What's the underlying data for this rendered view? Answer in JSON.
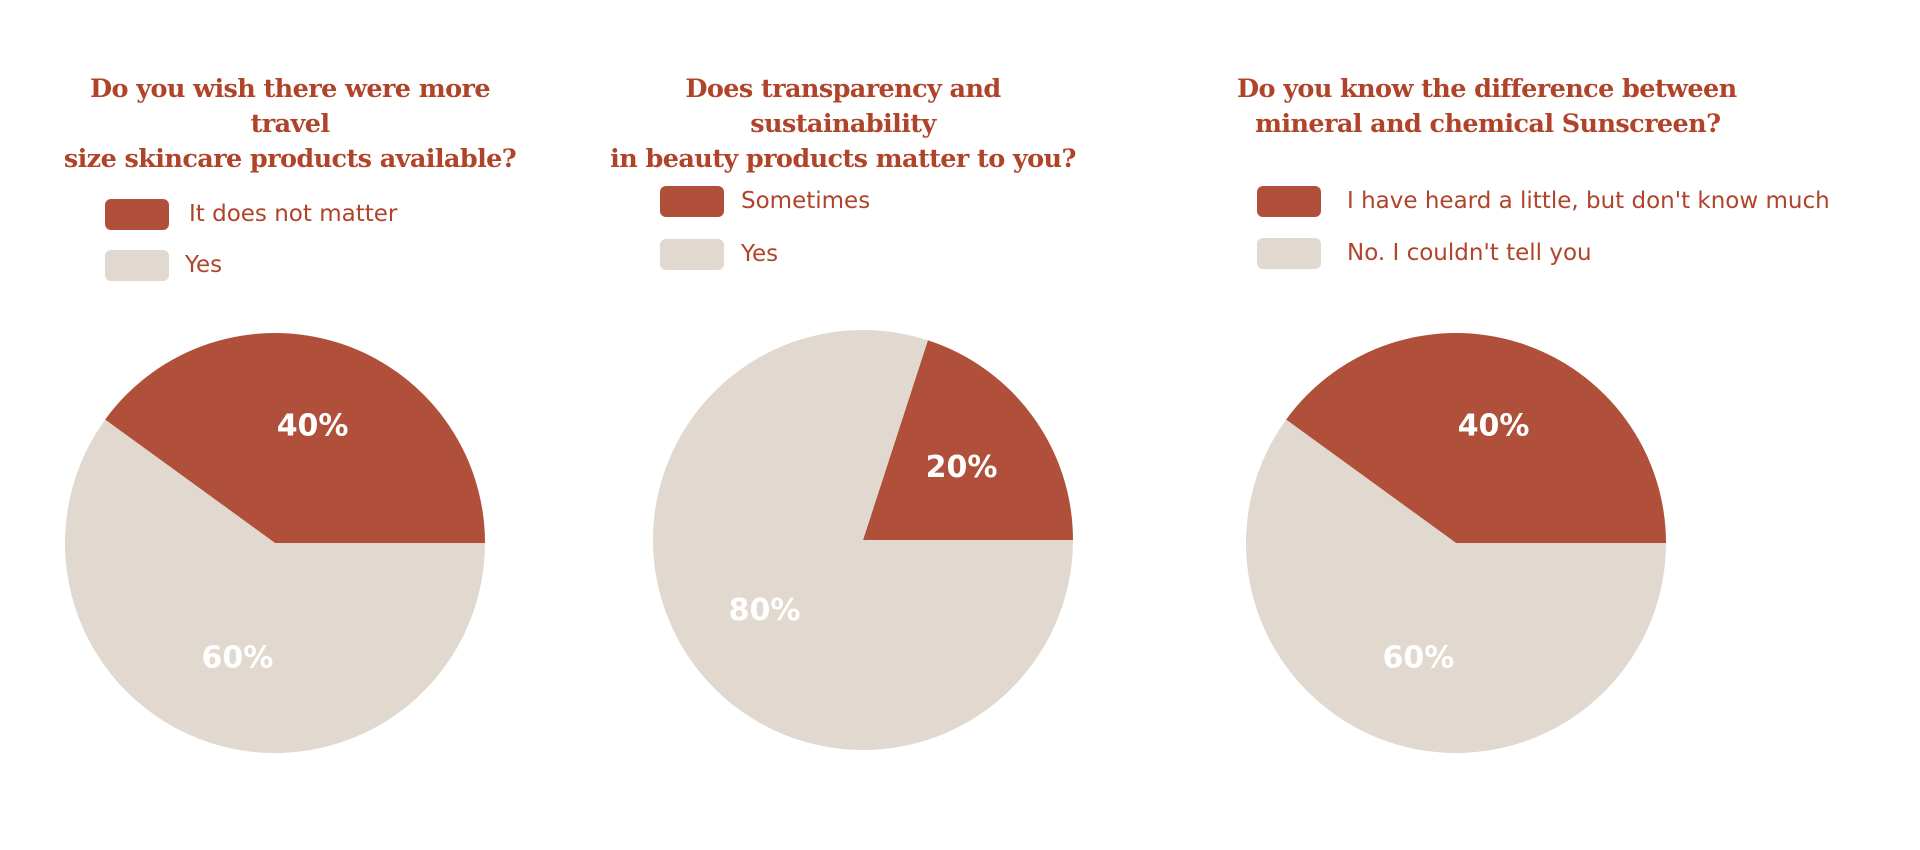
{
  "colors": {
    "accent": "#b0503a",
    "neutral": "#e1d8cf",
    "title": "#b0442a",
    "slice_label": "#ffffff"
  },
  "chart_data": [
    {
      "type": "pie",
      "title": "Do you wish there were more travel size skincare products available?",
      "title_lines": [
        "Do you wish there were more travel",
        "size skincare products available?"
      ],
      "legend_position": "top-left",
      "slices": [
        {
          "label": "It does not matter",
          "value": 40,
          "display": "40%",
          "color": "#b0503a"
        },
        {
          "label": "Yes",
          "value": 60,
          "display": "60%",
          "color": "#e1d8cf"
        }
      ]
    },
    {
      "type": "pie",
      "title": "Does transparency and sustainability in beauty products matter to you?",
      "title_lines": [
        "Does transparency and sustainability",
        "in beauty products matter to you?"
      ],
      "legend_position": "top-left",
      "slices": [
        {
          "label": "Sometimes",
          "value": 20,
          "display": "20%",
          "color": "#b0503a"
        },
        {
          "label": "Yes",
          "value": 80,
          "display": "80%",
          "color": "#e1d8cf"
        }
      ]
    },
    {
      "type": "pie",
      "title": "Do you know the difference between mineral and chemical Sunscreen?",
      "title_lines": [
        "Do you know the difference between",
        "mineral and chemical Sunscreen?"
      ],
      "legend_position": "top-left",
      "slices": [
        {
          "label": "I have heard a little, but don't know much",
          "value": 40,
          "display": "40%",
          "color": "#b0503a"
        },
        {
          "label": "No. I couldn't tell you",
          "value": 60,
          "display": "60%",
          "color": "#e1d8cf"
        }
      ]
    }
  ]
}
